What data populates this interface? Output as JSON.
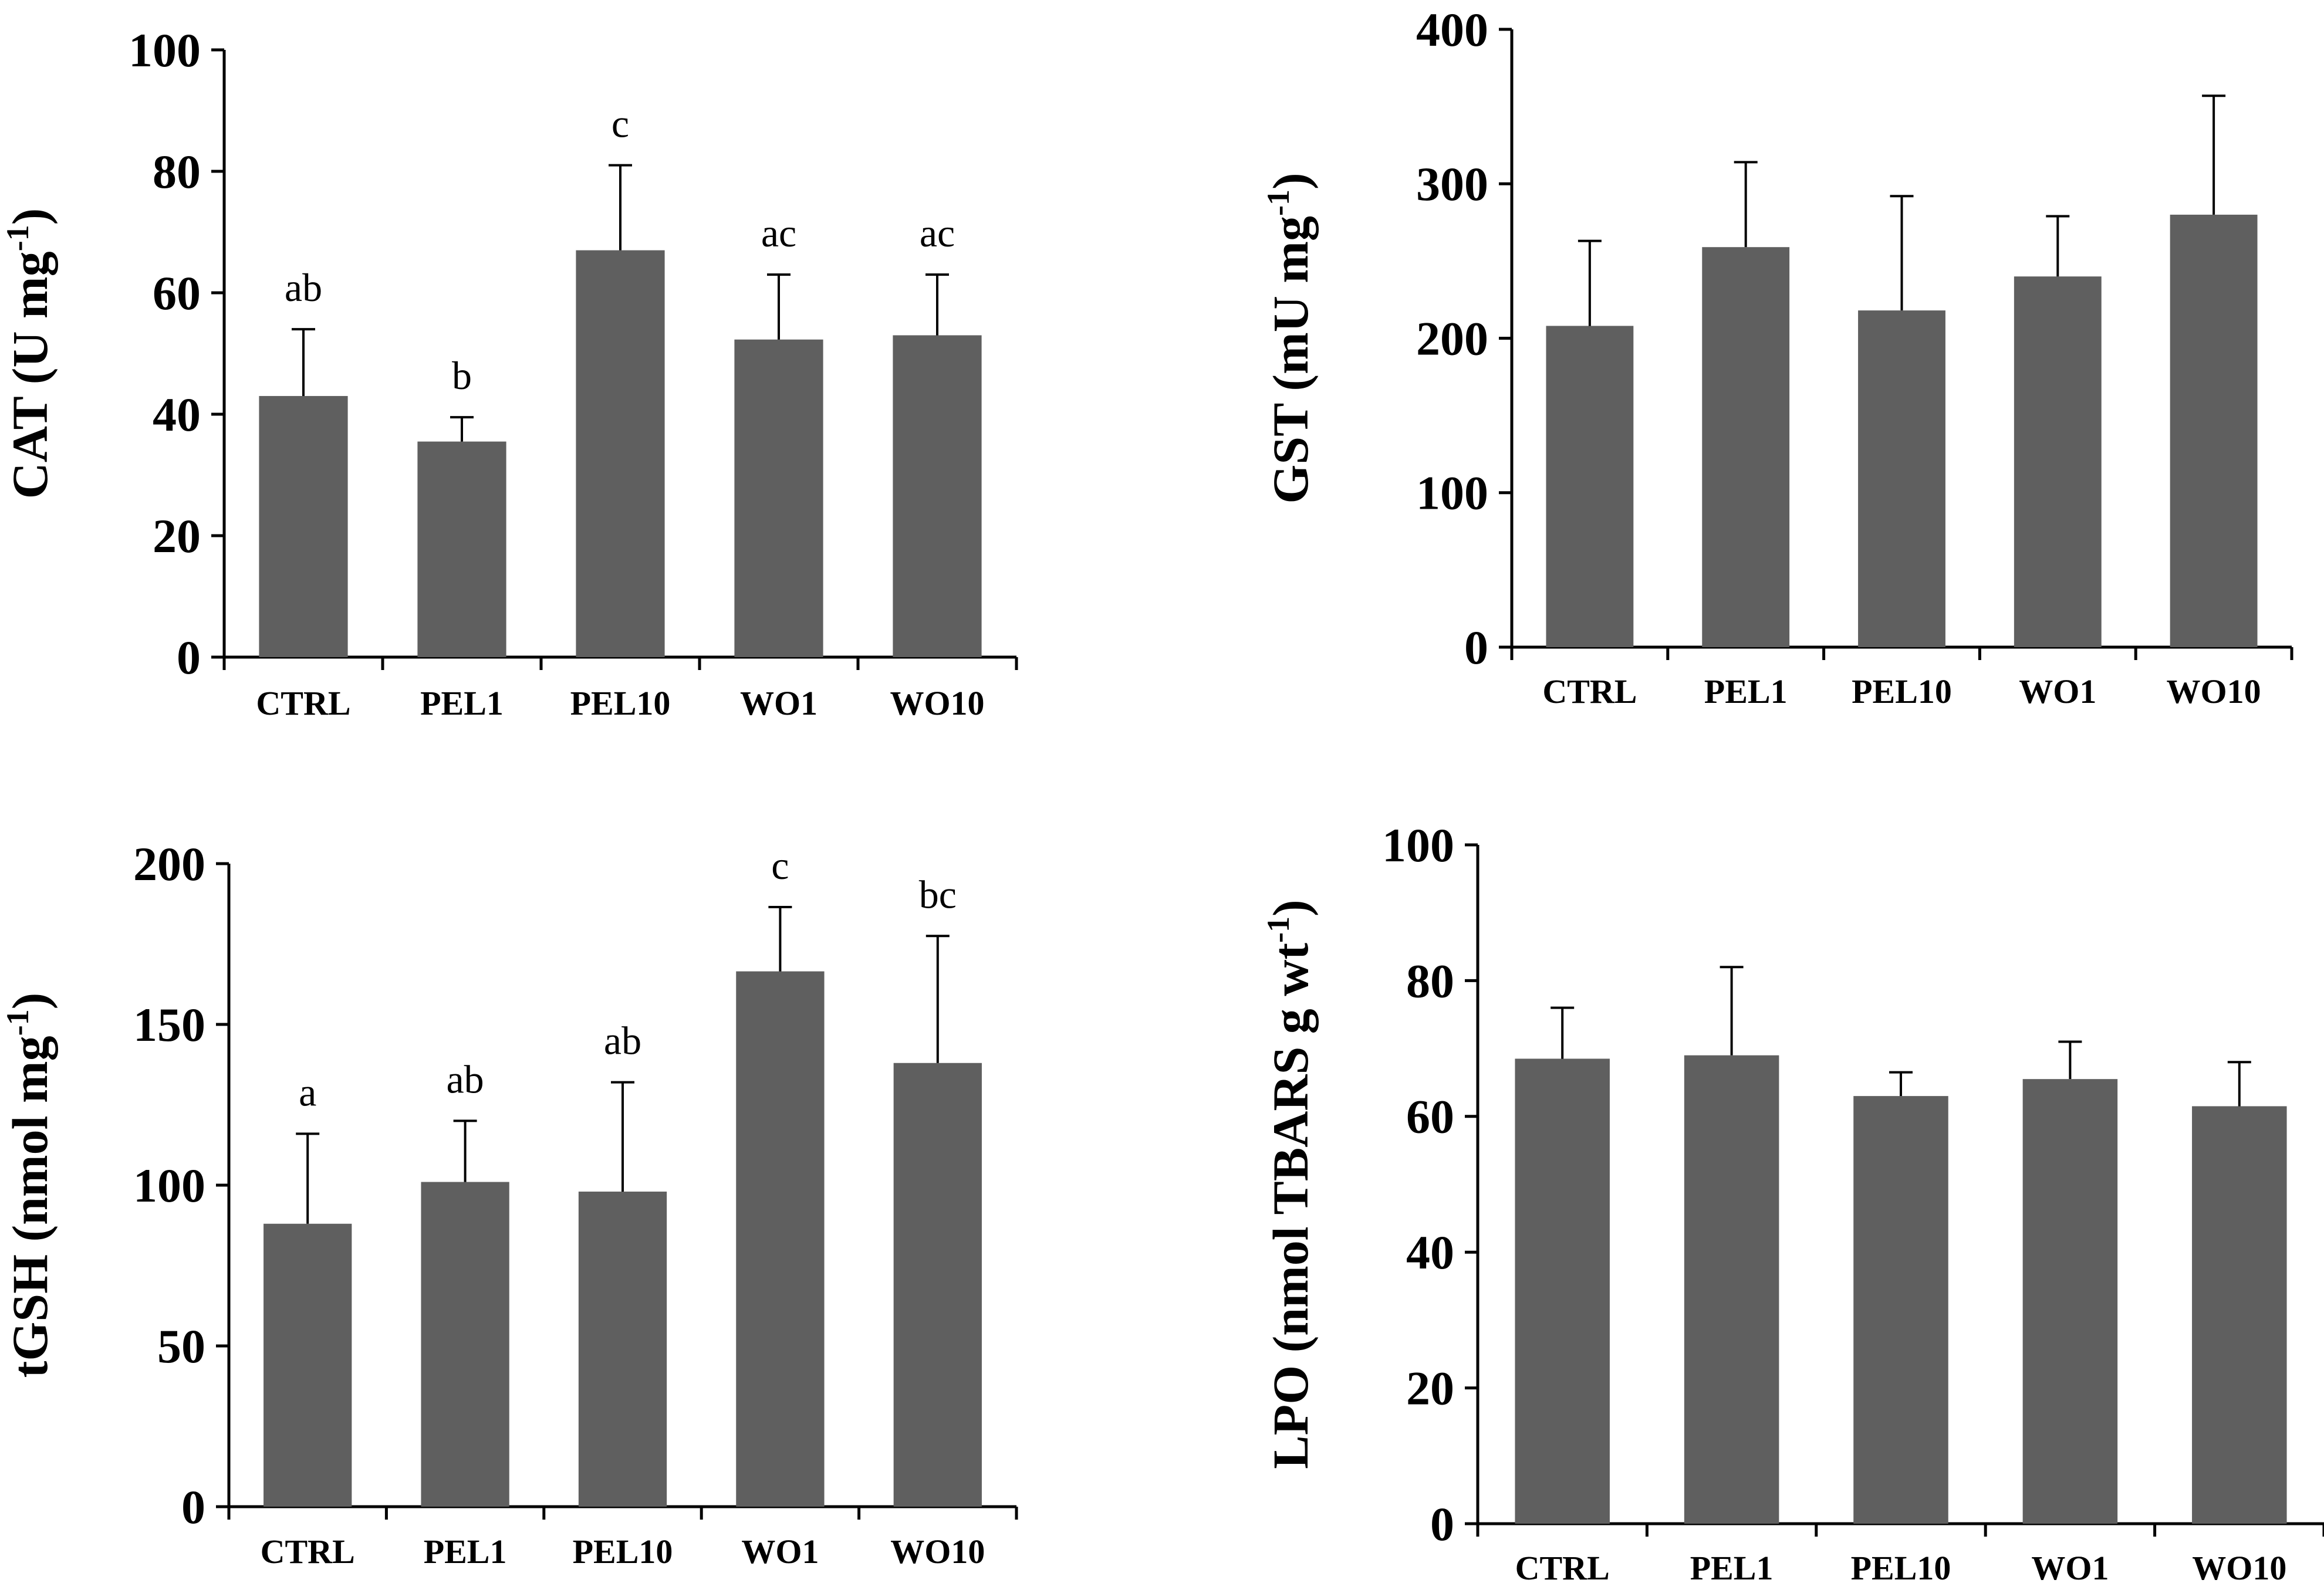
{
  "colors": {
    "bar": "#5f5f5f",
    "axis": "#000000",
    "error": "#000000",
    "background": "#ffffff"
  },
  "chart_data": [
    {
      "type": "bar",
      "title": "",
      "xlabel": "",
      "ylabel": "CAT (U mg",
      "ylabel_sup": "-1",
      "ylabel_tail": ")",
      "ylim": [
        0,
        100
      ],
      "yticks": [
        0,
        20,
        40,
        60,
        80,
        100
      ],
      "categories": [
        "CTRL",
        "PEL1",
        "PEL10",
        "WO1",
        "WO10"
      ],
      "values": [
        43,
        35.5,
        67,
        52.3,
        53
      ],
      "errors": [
        11,
        4,
        14,
        10.7,
        10
      ],
      "significance": [
        "ab",
        "b",
        "c",
        "ac",
        "ac"
      ]
    },
    {
      "type": "bar",
      "title": "",
      "xlabel": "",
      "ylabel": "GST (mU mg",
      "ylabel_sup": "-1",
      "ylabel_tail": ")",
      "ylim": [
        0,
        400
      ],
      "yticks": [
        0,
        100,
        200,
        300,
        400
      ],
      "categories": [
        "CTRL",
        "PEL1",
        "PEL10",
        "WO1",
        "WO10"
      ],
      "values": [
        208,
        259,
        218,
        240,
        280
      ],
      "errors": [
        55,
        55,
        74,
        39,
        77
      ],
      "significance": [
        "",
        "",
        "",
        "",
        ""
      ]
    },
    {
      "type": "bar",
      "title": "",
      "xlabel": "",
      "ylabel": "tGSH (nmol mg",
      "ylabel_sup": "-1",
      "ylabel_tail": ")",
      "ylim": [
        0,
        200
      ],
      "yticks": [
        0,
        50,
        100,
        150,
        200
      ],
      "categories": [
        "CTRL",
        "PEL1",
        "PEL10",
        "WO1",
        "WO10"
      ],
      "values": [
        88,
        101,
        98,
        166.5,
        138
      ],
      "errors": [
        28,
        19,
        34,
        20,
        39.5
      ],
      "significance": [
        "a",
        "ab",
        "ab",
        "c",
        "bc"
      ]
    },
    {
      "type": "bar",
      "title": "",
      "xlabel": "",
      "ylabel": "LPO (nmol TBARS g wt",
      "ylabel_sup": "-1",
      "ylabel_tail": ")",
      "ylim": [
        0,
        100
      ],
      "yticks": [
        0,
        20,
        40,
        60,
        80,
        100
      ],
      "categories": [
        "CTRL",
        "PEL1",
        "PEL10",
        "WO1",
        "WO10"
      ],
      "values": [
        68.5,
        69,
        63,
        65.5,
        61.5
      ],
      "errors": [
        7.5,
        13,
        3.5,
        5.5,
        6.5
      ],
      "significance": [
        "",
        "",
        "",
        "",
        ""
      ]
    }
  ]
}
